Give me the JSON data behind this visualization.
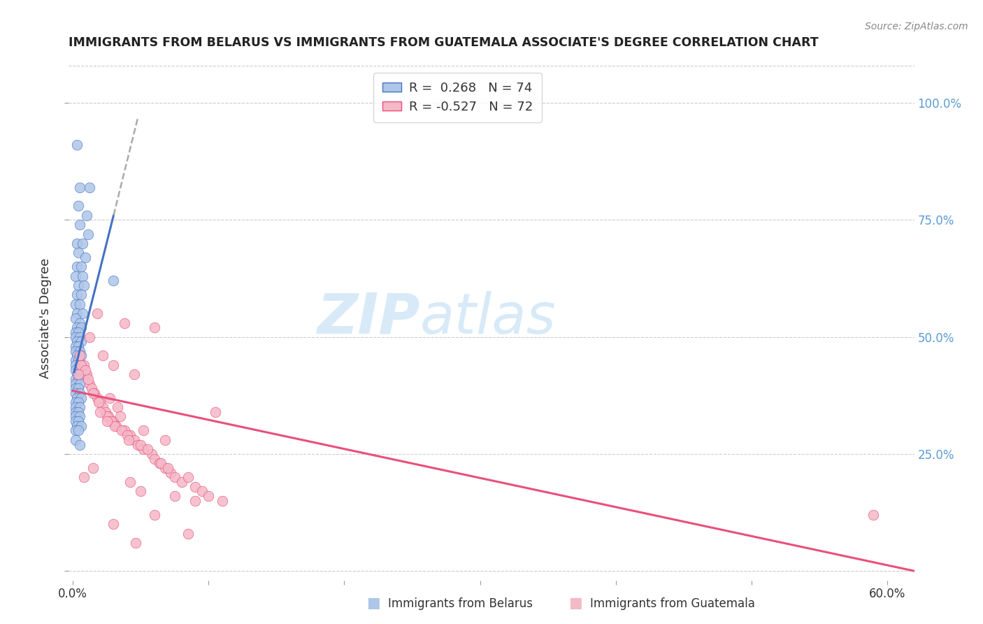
{
  "title": "IMMIGRANTS FROM BELARUS VS IMMIGRANTS FROM GUATEMALA ASSOCIATE'S DEGREE CORRELATION CHART",
  "source": "Source: ZipAtlas.com",
  "ylabel": "Associate's Degree",
  "yticks": [
    0.0,
    0.25,
    0.5,
    0.75,
    1.0
  ],
  "ytick_labels": [
    "",
    "25.0%",
    "50.0%",
    "75.0%",
    "100.0%"
  ],
  "legend_r_belarus": "R =  0.268",
  "legend_n_belarus": "N = 74",
  "legend_r_guatemala": "R = -0.527",
  "legend_n_guatemala": "N = 72",
  "blue_color": "#aec6e8",
  "pink_color": "#f5b8c8",
  "blue_line_color": "#4472c4",
  "pink_line_color": "#e8507a",
  "background_color": "#ffffff",
  "grid_color": "#cccccc",
  "xlim": [
    -0.003,
    0.62
  ],
  "ylim": [
    -0.02,
    1.1
  ],
  "xticks": [
    0.0,
    0.1,
    0.2,
    0.3,
    0.4,
    0.5,
    0.6
  ],
  "blue_scatter": [
    [
      0.003,
      0.91
    ],
    [
      0.005,
      0.82
    ],
    [
      0.012,
      0.82
    ],
    [
      0.004,
      0.78
    ],
    [
      0.01,
      0.76
    ],
    [
      0.005,
      0.74
    ],
    [
      0.011,
      0.72
    ],
    [
      0.003,
      0.7
    ],
    [
      0.007,
      0.7
    ],
    [
      0.004,
      0.68
    ],
    [
      0.009,
      0.67
    ],
    [
      0.003,
      0.65
    ],
    [
      0.006,
      0.65
    ],
    [
      0.002,
      0.63
    ],
    [
      0.007,
      0.63
    ],
    [
      0.004,
      0.61
    ],
    [
      0.008,
      0.61
    ],
    [
      0.003,
      0.59
    ],
    [
      0.006,
      0.59
    ],
    [
      0.002,
      0.57
    ],
    [
      0.005,
      0.57
    ],
    [
      0.003,
      0.55
    ],
    [
      0.007,
      0.55
    ],
    [
      0.002,
      0.54
    ],
    [
      0.005,
      0.53
    ],
    [
      0.003,
      0.52
    ],
    [
      0.006,
      0.52
    ],
    [
      0.002,
      0.51
    ],
    [
      0.004,
      0.51
    ],
    [
      0.002,
      0.5
    ],
    [
      0.005,
      0.5
    ],
    [
      0.003,
      0.49
    ],
    [
      0.006,
      0.49
    ],
    [
      0.002,
      0.48
    ],
    [
      0.004,
      0.48
    ],
    [
      0.002,
      0.47
    ],
    [
      0.005,
      0.47
    ],
    [
      0.003,
      0.46
    ],
    [
      0.006,
      0.46
    ],
    [
      0.002,
      0.45
    ],
    [
      0.004,
      0.45
    ],
    [
      0.002,
      0.44
    ],
    [
      0.005,
      0.44
    ],
    [
      0.002,
      0.43
    ],
    [
      0.004,
      0.43
    ],
    [
      0.003,
      0.42
    ],
    [
      0.006,
      0.42
    ],
    [
      0.002,
      0.41
    ],
    [
      0.004,
      0.41
    ],
    [
      0.002,
      0.4
    ],
    [
      0.005,
      0.4
    ],
    [
      0.002,
      0.39
    ],
    [
      0.004,
      0.39
    ],
    [
      0.002,
      0.38
    ],
    [
      0.005,
      0.38
    ],
    [
      0.003,
      0.37
    ],
    [
      0.006,
      0.37
    ],
    [
      0.002,
      0.36
    ],
    [
      0.004,
      0.36
    ],
    [
      0.002,
      0.35
    ],
    [
      0.005,
      0.35
    ],
    [
      0.002,
      0.34
    ],
    [
      0.004,
      0.34
    ],
    [
      0.002,
      0.33
    ],
    [
      0.005,
      0.33
    ],
    [
      0.002,
      0.32
    ],
    [
      0.004,
      0.32
    ],
    [
      0.003,
      0.31
    ],
    [
      0.006,
      0.31
    ],
    [
      0.002,
      0.3
    ],
    [
      0.004,
      0.3
    ],
    [
      0.002,
      0.28
    ],
    [
      0.005,
      0.27
    ],
    [
      0.03,
      0.62
    ]
  ],
  "pink_scatter": [
    [
      0.005,
      0.46
    ],
    [
      0.008,
      0.44
    ],
    [
      0.01,
      0.42
    ],
    [
      0.006,
      0.44
    ],
    [
      0.012,
      0.4
    ],
    [
      0.009,
      0.43
    ],
    [
      0.004,
      0.42
    ],
    [
      0.014,
      0.39
    ],
    [
      0.016,
      0.38
    ],
    [
      0.018,
      0.37
    ],
    [
      0.02,
      0.36
    ],
    [
      0.015,
      0.38
    ],
    [
      0.022,
      0.35
    ],
    [
      0.019,
      0.36
    ],
    [
      0.011,
      0.41
    ],
    [
      0.024,
      0.34
    ],
    [
      0.026,
      0.33
    ],
    [
      0.03,
      0.32
    ],
    [
      0.025,
      0.33
    ],
    [
      0.032,
      0.31
    ],
    [
      0.028,
      0.32
    ],
    [
      0.038,
      0.3
    ],
    [
      0.031,
      0.31
    ],
    [
      0.036,
      0.3
    ],
    [
      0.042,
      0.29
    ],
    [
      0.045,
      0.28
    ],
    [
      0.04,
      0.29
    ],
    [
      0.048,
      0.27
    ],
    [
      0.041,
      0.28
    ],
    [
      0.052,
      0.26
    ],
    [
      0.05,
      0.27
    ],
    [
      0.058,
      0.25
    ],
    [
      0.06,
      0.24
    ],
    [
      0.055,
      0.26
    ],
    [
      0.064,
      0.23
    ],
    [
      0.068,
      0.22
    ],
    [
      0.065,
      0.23
    ],
    [
      0.072,
      0.21
    ],
    [
      0.07,
      0.22
    ],
    [
      0.075,
      0.2
    ],
    [
      0.08,
      0.19
    ],
    [
      0.085,
      0.2
    ],
    [
      0.09,
      0.18
    ],
    [
      0.095,
      0.17
    ],
    [
      0.1,
      0.16
    ],
    [
      0.11,
      0.15
    ],
    [
      0.018,
      0.55
    ],
    [
      0.038,
      0.53
    ],
    [
      0.06,
      0.52
    ],
    [
      0.012,
      0.5
    ],
    [
      0.022,
      0.46
    ],
    [
      0.03,
      0.44
    ],
    [
      0.045,
      0.42
    ],
    [
      0.027,
      0.37
    ],
    [
      0.033,
      0.35
    ],
    [
      0.02,
      0.34
    ],
    [
      0.025,
      0.32
    ],
    [
      0.052,
      0.3
    ],
    [
      0.068,
      0.28
    ],
    [
      0.035,
      0.33
    ],
    [
      0.015,
      0.22
    ],
    [
      0.008,
      0.2
    ],
    [
      0.042,
      0.19
    ],
    [
      0.05,
      0.17
    ],
    [
      0.075,
      0.16
    ],
    [
      0.09,
      0.15
    ],
    [
      0.06,
      0.12
    ],
    [
      0.03,
      0.1
    ],
    [
      0.085,
      0.08
    ],
    [
      0.105,
      0.34
    ],
    [
      0.59,
      0.12
    ],
    [
      0.046,
      0.06
    ]
  ],
  "blue_trendline_solid": [
    [
      0.001,
      0.425
    ],
    [
      0.03,
      0.76
    ]
  ],
  "blue_trendline_dashed": [
    [
      0.03,
      0.76
    ],
    [
      0.048,
      0.97
    ]
  ],
  "pink_trendline": [
    [
      0.0,
      0.385
    ],
    [
      0.62,
      0.0
    ]
  ]
}
